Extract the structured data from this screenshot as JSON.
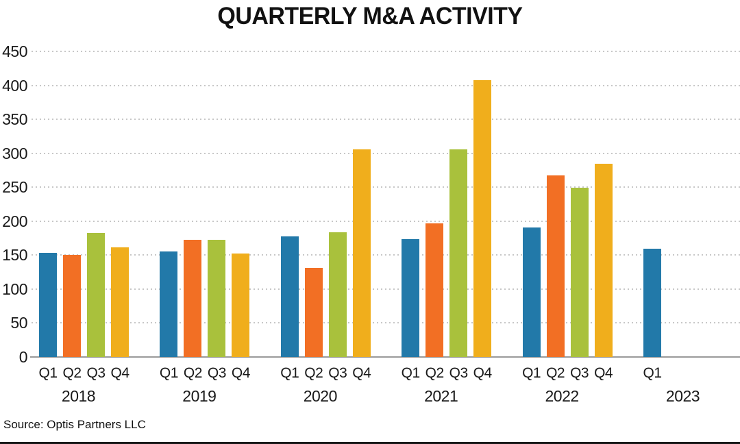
{
  "title": "QUARTERLY M&A ACTIVITY",
  "source": "Source: Optis Partners LLC",
  "colors": {
    "quarter_series": [
      "#2279A9",
      "#F26F24",
      "#A9C13C",
      "#F0AE1C"
    ],
    "gridline": "#C7C7C7",
    "zero_axis": "#9A9A9A",
    "text": "#1A1A1A"
  },
  "chart_data": {
    "type": "bar",
    "title": "QUARTERLY M&A ACTIVITY",
    "xlabel": "",
    "ylabel": "",
    "ylim": [
      0,
      450
    ],
    "ytick_step": 50,
    "yticks": [
      0,
      50,
      100,
      150,
      200,
      250,
      300,
      350,
      400,
      450
    ],
    "grid": "horizontal-dotted",
    "legend_position": "none",
    "quarter_labels": [
      "Q1",
      "Q2",
      "Q3",
      "Q4"
    ],
    "series_colors": [
      "#2279A9",
      "#F26F24",
      "#A9C13C",
      "#F0AE1C"
    ],
    "groups": [
      {
        "year": "2018",
        "values": [
          153,
          150,
          183,
          161
        ]
      },
      {
        "year": "2019",
        "values": [
          155,
          173,
          173,
          152
        ]
      },
      {
        "year": "2020",
        "values": [
          178,
          131,
          184,
          306
        ]
      },
      {
        "year": "2021",
        "values": [
          174,
          197,
          306,
          408
        ]
      },
      {
        "year": "2022",
        "values": [
          191,
          267,
          249,
          285
        ]
      },
      {
        "year": "2023",
        "values": [
          159
        ]
      }
    ],
    "source": "Source: Optis Partners LLC"
  }
}
